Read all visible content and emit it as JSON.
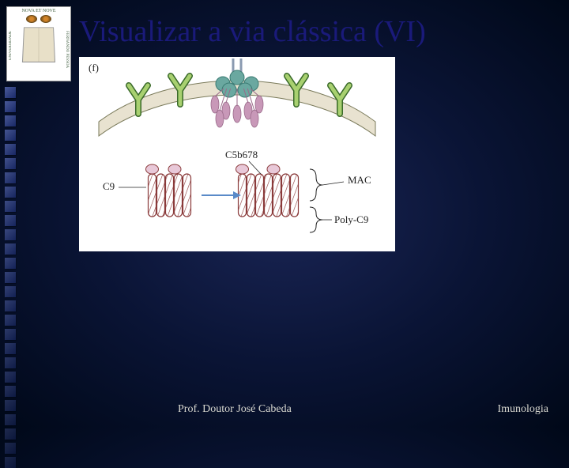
{
  "logo": {
    "banner_top": "NOVA ET NOVE",
    "side_left": "UNIVERSIDADE",
    "side_right": "FERNANDO PESSOA"
  },
  "title": "Visualizar a via clássica (VI)",
  "figure": {
    "panel_label_tl": "(f)",
    "labels": {
      "c9": "C9",
      "c5b678": "C5b678",
      "mac": "MAC",
      "poly_c9": "Poly-C9"
    },
    "colors": {
      "membrane_fill": "#e8e2d0",
      "membrane_stroke": "#7a7a5a",
      "antibody_fill": "#a8d070",
      "antibody_stroke": "#3a6a2a",
      "complex_sphere": "#6aa8a0",
      "complex_drop": "#c898b8",
      "pore_stroke": "#8a3a3a",
      "pore_hatch": "#8a3a3a",
      "arrow": "#5a8ac8",
      "label_text": "#222222",
      "brace": "#222222"
    }
  },
  "decor": {
    "count": 27,
    "color_dark": "#1a2a6a",
    "color_light": "#4a5a9a"
  },
  "footer": {
    "left": "Prof. Doutor José Cabeda",
    "right": "Imunologia"
  }
}
